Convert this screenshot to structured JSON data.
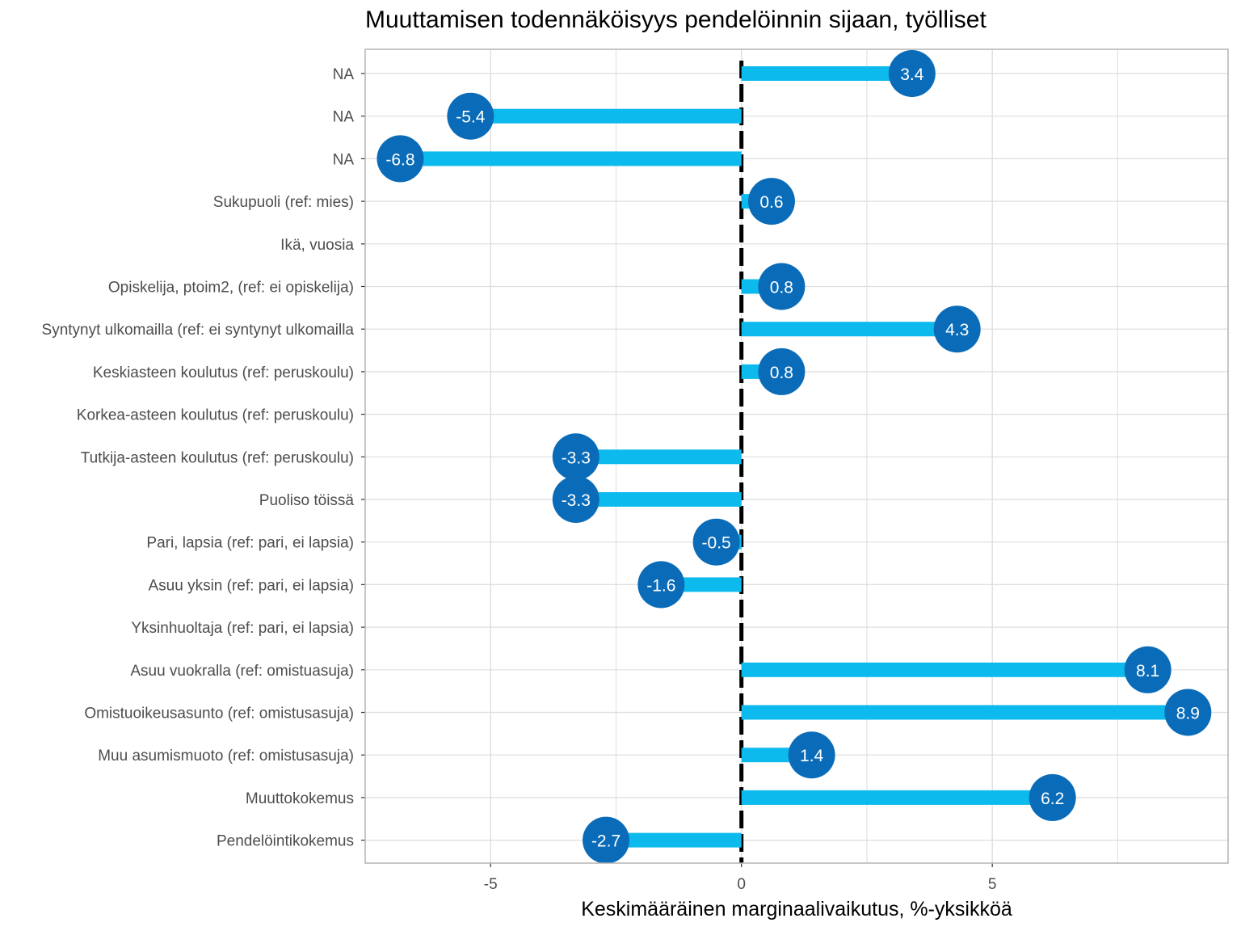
{
  "chart_data": {
    "type": "bar",
    "orientation": "horizontal",
    "title": "Muuttamisen todennäköisyys pendelöinnin sijaan, työlliset",
    "xlabel": "Keskimääräinen marginaalivaikutus, %-yksikköä",
    "ylabel": "",
    "xlim": [
      -7.5,
      9.7
    ],
    "xticks": [
      -5,
      0,
      5
    ],
    "xtick_labels": [
      "-5",
      "0",
      "5"
    ],
    "grid": true,
    "zero_line": "dashed",
    "categories": [
      "NA",
      "NA",
      "NA",
      "Sukupuoli (ref: mies)",
      "Ikä, vuosia",
      "Opiskelija, ptoim2, (ref: ei opiskelija)",
      "Syntynyt ulkomailla (ref: ei syntynyt ulkomailla",
      "Keskiasteen koulutus (ref: peruskoulu)",
      "Korkea-asteen koulutus (ref: peruskoulu)",
      "Tutkija-asteen koulutus (ref: peruskoulu)",
      "Puoliso töissä",
      "Pari, lapsia (ref: pari, ei lapsia)",
      "Asuu yksin (ref: pari, ei lapsia)",
      "Yksinhuoltaja (ref: pari, ei lapsia)",
      "Asuu vuokralla (ref: omistuasuja)",
      "Omistuoikeusasunto (ref: omistusasuja)",
      "Muu asumismuoto (ref: omistusasuja)",
      "Muuttokokemus",
      "Pendelöintikokemus"
    ],
    "values": [
      3.4,
      -5.4,
      -6.8,
      0.6,
      null,
      0.8,
      4.3,
      0.8,
      null,
      -3.3,
      -3.3,
      -0.5,
      -1.6,
      null,
      8.1,
      8.9,
      1.4,
      6.2,
      -2.7
    ],
    "value_labels": [
      "3.4",
      "-5.4",
      "-6.8",
      "0.6",
      "",
      "0.8",
      "4.3",
      "0.8",
      "",
      "-3.3",
      "-3.3",
      "-0.5",
      "-1.6",
      "",
      "8.1",
      "8.9",
      "1.4",
      "6.2",
      "-2.7"
    ],
    "colors": {
      "bar": "#0dbaed",
      "point": "#0a6cb8",
      "zero_line": "#000000",
      "grid": "#dedede",
      "panel_border": "#b3b3b3"
    }
  }
}
